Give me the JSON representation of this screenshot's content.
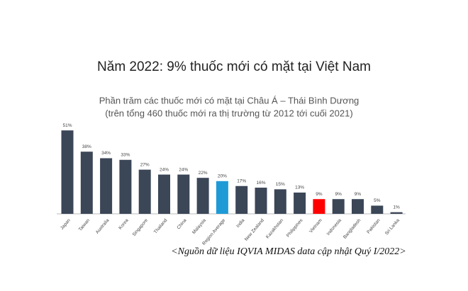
{
  "chart_data": {
    "type": "bar",
    "title": "Năm 2022: 9% thuốc mới có mặt tại Việt Nam",
    "subtitle": [
      "Phần trăm các thuốc mới có mặt tại Châu Á – Thái Bình Dương",
      "(trên tổng 460 thuốc mới ra thị trường từ 2012 tới cuối 2021)"
    ],
    "categories": [
      "Japan",
      "Taiwan",
      "Australia",
      "Korea",
      "Singapore",
      "Thailand",
      "China",
      "Malaysia",
      "Region Average",
      "India",
      "New Zealand",
      "Kazakhstan",
      "Philippines",
      "Vietnam",
      "Indonesia",
      "Bangladesh",
      "Pakistan",
      "Sri Lanka"
    ],
    "values": [
      51,
      38,
      34,
      33,
      27,
      24,
      24,
      22,
      20,
      17,
      16,
      15,
      13,
      9,
      9,
      9,
      5,
      1
    ],
    "value_labels": [
      "51%",
      "38%",
      "34%",
      "33%",
      "27%",
      "24%",
      "24%",
      "22%",
      "20%",
      "17%",
      "16%",
      "15%",
      "13%",
      "9%",
      "9%",
      "9%",
      "5%",
      "1%"
    ],
    "colors": [
      "#3b4657",
      "#3b4657",
      "#3b4657",
      "#3b4657",
      "#3b4657",
      "#3b4657",
      "#3b4657",
      "#3b4657",
      "#1e9bd7",
      "#3b4657",
      "#3b4657",
      "#3b4657",
      "#3b4657",
      "#ff0000",
      "#3b4657",
      "#3b4657",
      "#3b4657",
      "#3b4657"
    ],
    "source": "<Nguồn dữ liệu IQVIA MIDAS data cập nhật Quý I/2022>"
  }
}
